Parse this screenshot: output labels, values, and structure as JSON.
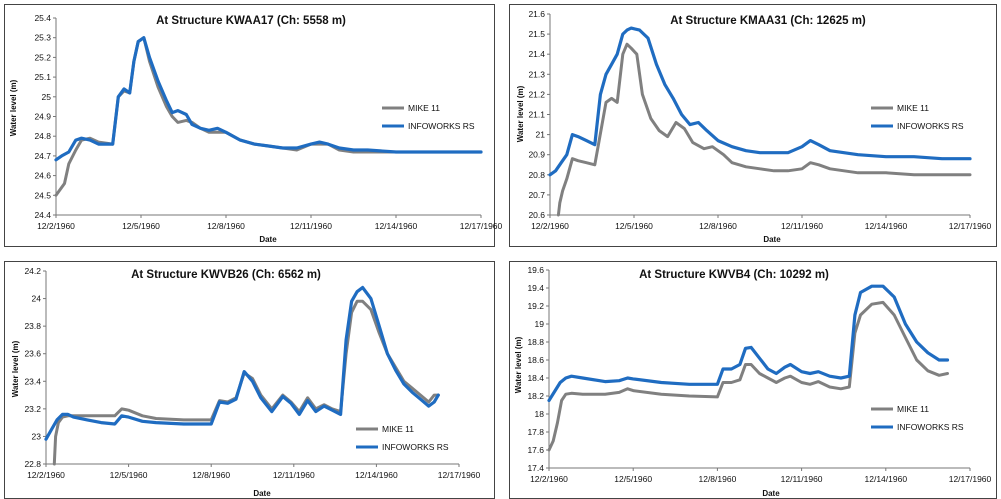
{
  "charts": [
    {
      "title": "At Structure KWAA17 (Ch: 5558 m)",
      "xlabel": "Date",
      "ylabel": "Water level (m)",
      "ylim": [
        24.4,
        25.4
      ],
      "yticks": [
        "24.4",
        "24.5",
        "24.6",
        "24.7",
        "24.8",
        "24.9",
        "25",
        "25.1",
        "25.2",
        "25.3",
        "25.4"
      ],
      "xticks": [
        "12/2/1960",
        "12/5/1960",
        "12/8/1960",
        "12/11/1960",
        "12/14/1960",
        "12/17/1960"
      ],
      "legend": [
        "MIKE 11",
        "INFOWORKS RS"
      ]
    },
    {
      "title": "At Structure KMAA31 (Ch: 12625 m)",
      "xlabel": "Date",
      "ylabel": "Water level (m)",
      "ylim": [
        20.6,
        21.6
      ],
      "yticks": [
        "20.6",
        "20.7",
        "20.8",
        "20.9",
        "21",
        "21.1",
        "21.2",
        "21.3",
        "21.4",
        "21.5",
        "21.6"
      ],
      "xticks": [
        "12/2/1960",
        "12/5/1960",
        "12/8/1960",
        "12/11/1960",
        "12/14/1960",
        "12/17/1960"
      ],
      "legend": [
        "MIKE 11",
        "INFOWORKS RS"
      ]
    },
    {
      "title": "At Structure KWVB26 (Ch: 6562 m)",
      "xlabel": "Date",
      "ylabel": "Water level (m)",
      "ylim": [
        22.8,
        24.2
      ],
      "yticks": [
        "22.8",
        "23",
        "23.2",
        "23.4",
        "23.6",
        "23.8",
        "24",
        "24.2"
      ],
      "xticks": [
        "12/2/1960",
        "12/5/1960",
        "12/8/1960",
        "12/11/1960",
        "12/14/1960",
        "12/17/1960"
      ],
      "legend": [
        "MIKE 11",
        "INFOWORKS RS"
      ]
    },
    {
      "title": "At Structure KWVB4 (Ch: 10292 m)",
      "xlabel": "Date",
      "ylabel": "Water level (m)",
      "ylim": [
        17.4,
        19.6
      ],
      "yticks": [
        "17.4",
        "17.6",
        "17.8",
        "18",
        "18.2",
        "18.4",
        "18.6",
        "18.8",
        "19",
        "19.2",
        "19.4",
        "19.6"
      ],
      "xticks": [
        "12/2/1960",
        "12/5/1960",
        "12/8/1960",
        "12/11/1960",
        "12/14/1960",
        "12/17/1960"
      ],
      "legend": [
        "MIKE 11",
        "INFOWORKS RS"
      ]
    }
  ],
  "chart_data": [
    {
      "type": "line",
      "title": "At Structure KWAA17 (Ch: 5558 m)",
      "xlabel": "Date",
      "ylabel": "Water level (m)",
      "xlim": [
        0,
        15
      ],
      "ylim": [
        24.4,
        25.4
      ],
      "grid": false,
      "legend_position": "right",
      "series": [
        {
          "name": "MIKE 11",
          "color": "#808080",
          "x": [
            0,
            0.2,
            0.3,
            0.45,
            0.7,
            0.9,
            1.2,
            1.5,
            2.0,
            2.2,
            2.4,
            2.6,
            2.75,
            2.9,
            3.1,
            3.3,
            3.6,
            3.9,
            4.1,
            4.3,
            4.6,
            4.8,
            5.1,
            5.4,
            5.7,
            6,
            6.5,
            7,
            7.5,
            8,
            8.5,
            9,
            9.3,
            9.6,
            10,
            10.5,
            11,
            12,
            13,
            14,
            15
          ],
          "y": [
            24.5,
            24.54,
            24.56,
            24.66,
            24.73,
            24.78,
            24.79,
            24.77,
            24.76,
            25.0,
            25.03,
            25.02,
            25.18,
            25.28,
            25.3,
            25.18,
            25.05,
            24.95,
            24.9,
            24.87,
            24.88,
            24.87,
            24.84,
            24.82,
            24.82,
            24.82,
            24.78,
            24.76,
            24.75,
            24.74,
            24.73,
            24.76,
            24.76,
            24.76,
            24.73,
            24.72,
            24.72,
            24.72,
            24.72,
            24.72,
            24.72
          ]
        },
        {
          "name": "INFOWORKS RS",
          "color": "#1f6cc1",
          "x": [
            0,
            0.2,
            0.45,
            0.7,
            0.9,
            1.2,
            1.5,
            2.0,
            2.2,
            2.4,
            2.6,
            2.75,
            2.9,
            3.1,
            3.3,
            3.6,
            3.9,
            4.1,
            4.3,
            4.6,
            4.8,
            5.1,
            5.4,
            5.7,
            6,
            6.5,
            7,
            7.5,
            8,
            8.5,
            9,
            9.3,
            9.6,
            10,
            10.5,
            11,
            12,
            13,
            14,
            15
          ],
          "y": [
            24.68,
            24.7,
            24.72,
            24.78,
            24.79,
            24.78,
            24.76,
            24.76,
            25.0,
            25.04,
            25.02,
            25.18,
            25.28,
            25.3,
            25.2,
            25.08,
            24.98,
            24.92,
            24.93,
            24.91,
            24.86,
            24.84,
            24.83,
            24.84,
            24.82,
            24.78,
            24.76,
            24.75,
            24.74,
            24.74,
            24.76,
            24.77,
            24.76,
            24.74,
            24.73,
            24.73,
            24.72,
            24.72,
            24.72,
            24.72
          ]
        }
      ]
    },
    {
      "type": "line",
      "title": "At Structure KMAA31 (Ch: 12625 m)",
      "xlabel": "Date",
      "ylabel": "Water level (m)",
      "xlim": [
        0,
        15
      ],
      "ylim": [
        20.6,
        21.6
      ],
      "grid": false,
      "legend_position": "right",
      "series": [
        {
          "name": "MIKE 11",
          "color": "#808080",
          "x": [
            0.3,
            0.35,
            0.45,
            0.6,
            0.8,
            1.0,
            1.3,
            1.6,
            2.0,
            2.2,
            2.4,
            2.6,
            2.75,
            2.9,
            3.1,
            3.3,
            3.6,
            3.9,
            4.2,
            4.5,
            4.8,
            5.1,
            5.5,
            5.8,
            6.2,
            6.5,
            7,
            7.5,
            8,
            8.5,
            9,
            9.3,
            9.6,
            10,
            11,
            12,
            13,
            14,
            15
          ],
          "y": [
            20.6,
            20.66,
            20.72,
            20.78,
            20.88,
            20.87,
            20.86,
            20.85,
            21.16,
            21.18,
            21.16,
            21.4,
            21.45,
            21.43,
            21.4,
            21.2,
            21.08,
            21.02,
            20.99,
            21.06,
            21.03,
            20.96,
            20.93,
            20.94,
            20.9,
            20.86,
            20.84,
            20.83,
            20.82,
            20.82,
            20.83,
            20.86,
            20.85,
            20.83,
            20.81,
            20.81,
            20.8,
            20.8,
            20.8
          ]
        },
        {
          "name": "INFOWORKS RS",
          "color": "#1f6cc1",
          "x": [
            0,
            0.2,
            0.4,
            0.6,
            0.8,
            1.0,
            1.3,
            1.6,
            1.8,
            2.0,
            2.2,
            2.4,
            2.6,
            2.75,
            2.9,
            3.2,
            3.5,
            3.8,
            4.1,
            4.4,
            4.7,
            5.0,
            5.3,
            5.6,
            6,
            6.5,
            7,
            7.5,
            8,
            8.5,
            9,
            9.3,
            9.6,
            10,
            11,
            12,
            13,
            14,
            15
          ],
          "y": [
            20.8,
            20.82,
            20.86,
            20.9,
            21.0,
            20.99,
            20.97,
            20.95,
            21.2,
            21.3,
            21.35,
            21.4,
            21.5,
            21.52,
            21.53,
            21.52,
            21.48,
            21.35,
            21.25,
            21.18,
            21.1,
            21.05,
            21.06,
            21.02,
            20.97,
            20.94,
            20.92,
            20.91,
            20.91,
            20.91,
            20.94,
            20.97,
            20.95,
            20.92,
            20.9,
            20.89,
            20.89,
            20.88,
            20.88
          ]
        }
      ]
    },
    {
      "type": "line",
      "title": "At Structure KWVB26 (Ch: 6562 m)",
      "xlabel": "Date",
      "ylabel": "Water level (m)",
      "xlim": [
        0,
        15
      ],
      "ylim": [
        22.8,
        24.2
      ],
      "grid": false,
      "legend_position": "bottom-right",
      "series": [
        {
          "name": "MIKE 11",
          "color": "#808080",
          "x": [
            0.3,
            0.35,
            0.45,
            0.6,
            0.8,
            1.0,
            1.5,
            2,
            2.5,
            2.75,
            3,
            3.5,
            4,
            5,
            6,
            6.3,
            6.6,
            6.9,
            7.2,
            7.5,
            7.8,
            8.2,
            8.6,
            8.9,
            9.2,
            9.5,
            9.8,
            10.1,
            10.4,
            10.7,
            10.9,
            11.1,
            11.3,
            11.5,
            11.8,
            12.1,
            12.4,
            12.7,
            13,
            13.3,
            13.6,
            13.9,
            14.1,
            14.25
          ],
          "y": [
            22.8,
            23.0,
            23.1,
            23.14,
            23.15,
            23.15,
            23.15,
            23.15,
            23.15,
            23.2,
            23.19,
            23.15,
            23.13,
            23.12,
            23.12,
            23.26,
            23.25,
            23.28,
            23.46,
            23.42,
            23.3,
            23.2,
            23.3,
            23.25,
            23.18,
            23.28,
            23.2,
            23.23,
            23.2,
            23.18,
            23.6,
            23.9,
            23.98,
            23.98,
            23.92,
            23.75,
            23.6,
            23.5,
            23.4,
            23.35,
            23.3,
            23.25,
            23.3,
            23.3
          ]
        },
        {
          "name": "INFOWORKS RS",
          "color": "#1f6cc1",
          "x": [
            0,
            0.2,
            0.4,
            0.6,
            0.8,
            1.0,
            1.5,
            2,
            2.5,
            2.75,
            3,
            3.5,
            4,
            5,
            6,
            6.3,
            6.6,
            6.9,
            7.2,
            7.5,
            7.8,
            8.2,
            8.6,
            8.9,
            9.2,
            9.5,
            9.8,
            10.1,
            10.4,
            10.7,
            10.9,
            11.1,
            11.3,
            11.5,
            11.8,
            12.1,
            12.4,
            12.7,
            13,
            13.3,
            13.6,
            13.9,
            14.1,
            14.25
          ],
          "y": [
            22.98,
            23.05,
            23.12,
            23.16,
            23.16,
            23.14,
            23.12,
            23.1,
            23.09,
            23.15,
            23.14,
            23.11,
            23.1,
            23.09,
            23.09,
            23.25,
            23.24,
            23.27,
            23.47,
            23.4,
            23.28,
            23.18,
            23.29,
            23.24,
            23.16,
            23.26,
            23.18,
            23.22,
            23.19,
            23.16,
            23.7,
            23.98,
            24.05,
            24.08,
            24.0,
            23.8,
            23.6,
            23.48,
            23.38,
            23.32,
            23.27,
            23.22,
            23.25,
            23.3
          ]
        }
      ]
    },
    {
      "type": "line",
      "title": "At Structure KWVB4 (Ch: 10292 m)",
      "xlabel": "Date",
      "ylabel": "Water level (m)",
      "xlim": [
        0,
        15
      ],
      "ylim": [
        17.4,
        19.6
      ],
      "grid": false,
      "legend_position": "bottom-right",
      "series": [
        {
          "name": "MIKE 11",
          "color": "#808080",
          "x": [
            0,
            0.15,
            0.3,
            0.45,
            0.6,
            0.8,
            1.2,
            2,
            2.5,
            2.8,
            3,
            4,
            5,
            6,
            6.2,
            6.5,
            6.8,
            7.0,
            7.2,
            7.5,
            7.8,
            8.1,
            8.4,
            8.6,
            9,
            9.3,
            9.6,
            10,
            10.4,
            10.7,
            10.9,
            11.1,
            11.5,
            11.9,
            12.3,
            12.7,
            13.1,
            13.5,
            13.9,
            14.2
          ],
          "y": [
            17.6,
            17.7,
            17.9,
            18.15,
            18.22,
            18.23,
            18.22,
            18.22,
            18.24,
            18.28,
            18.26,
            18.22,
            18.2,
            18.19,
            18.35,
            18.35,
            18.38,
            18.55,
            18.55,
            18.45,
            18.4,
            18.35,
            18.4,
            18.42,
            18.35,
            18.33,
            18.36,
            18.3,
            18.28,
            18.3,
            18.9,
            19.1,
            19.22,
            19.24,
            19.1,
            18.85,
            18.6,
            18.48,
            18.43,
            18.45
          ]
        },
        {
          "name": "INFOWORKS RS",
          "color": "#1f6cc1",
          "x": [
            0,
            0.2,
            0.4,
            0.6,
            0.8,
            1.2,
            2,
            2.5,
            2.8,
            3,
            4,
            5,
            6,
            6.2,
            6.5,
            6.8,
            7.0,
            7.2,
            7.5,
            7.8,
            8.1,
            8.4,
            8.6,
            9,
            9.3,
            9.6,
            10,
            10.4,
            10.7,
            10.9,
            11.1,
            11.5,
            11.9,
            12.3,
            12.7,
            13.1,
            13.5,
            13.9,
            14.2
          ],
          "y": [
            18.15,
            18.25,
            18.35,
            18.4,
            18.42,
            18.4,
            18.36,
            18.37,
            18.4,
            18.39,
            18.35,
            18.33,
            18.33,
            18.5,
            18.5,
            18.55,
            18.73,
            18.74,
            18.62,
            18.5,
            18.45,
            18.52,
            18.55,
            18.47,
            18.45,
            18.47,
            18.42,
            18.4,
            18.42,
            19.1,
            19.35,
            19.42,
            19.42,
            19.3,
            19.0,
            18.8,
            18.68,
            18.6,
            18.6
          ]
        }
      ]
    }
  ]
}
